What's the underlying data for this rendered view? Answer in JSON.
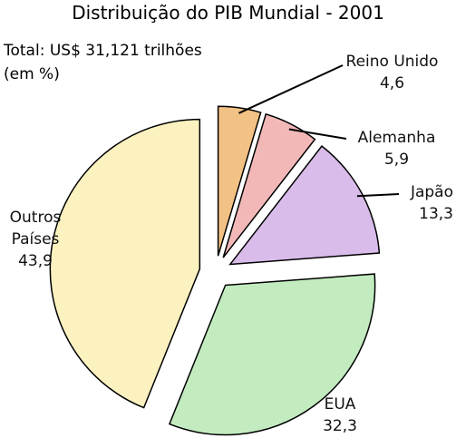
{
  "chart_data": {
    "type": "pie",
    "title": "Distribuição do PIB Mundial - 2001",
    "subtitle": "Total: US$ 31,121 trilhões",
    "unit_note": "(em %)",
    "categories": [
      "Reino Unido",
      "Alemanha",
      "Japão",
      "EUA",
      "Outros Países"
    ],
    "values": [
      4.6,
      5.9,
      13.3,
      32.3,
      43.9
    ],
    "value_labels": [
      "4,6",
      "5,9",
      "13,3",
      "32,3",
      "43,9"
    ],
    "colors": [
      "#f2c184",
      "#f2b8b8",
      "#d9bcea",
      "#c2ecc0",
      "#fbf2c0"
    ],
    "start_angle": 0,
    "direction": "clockwise",
    "exploded": true
  }
}
